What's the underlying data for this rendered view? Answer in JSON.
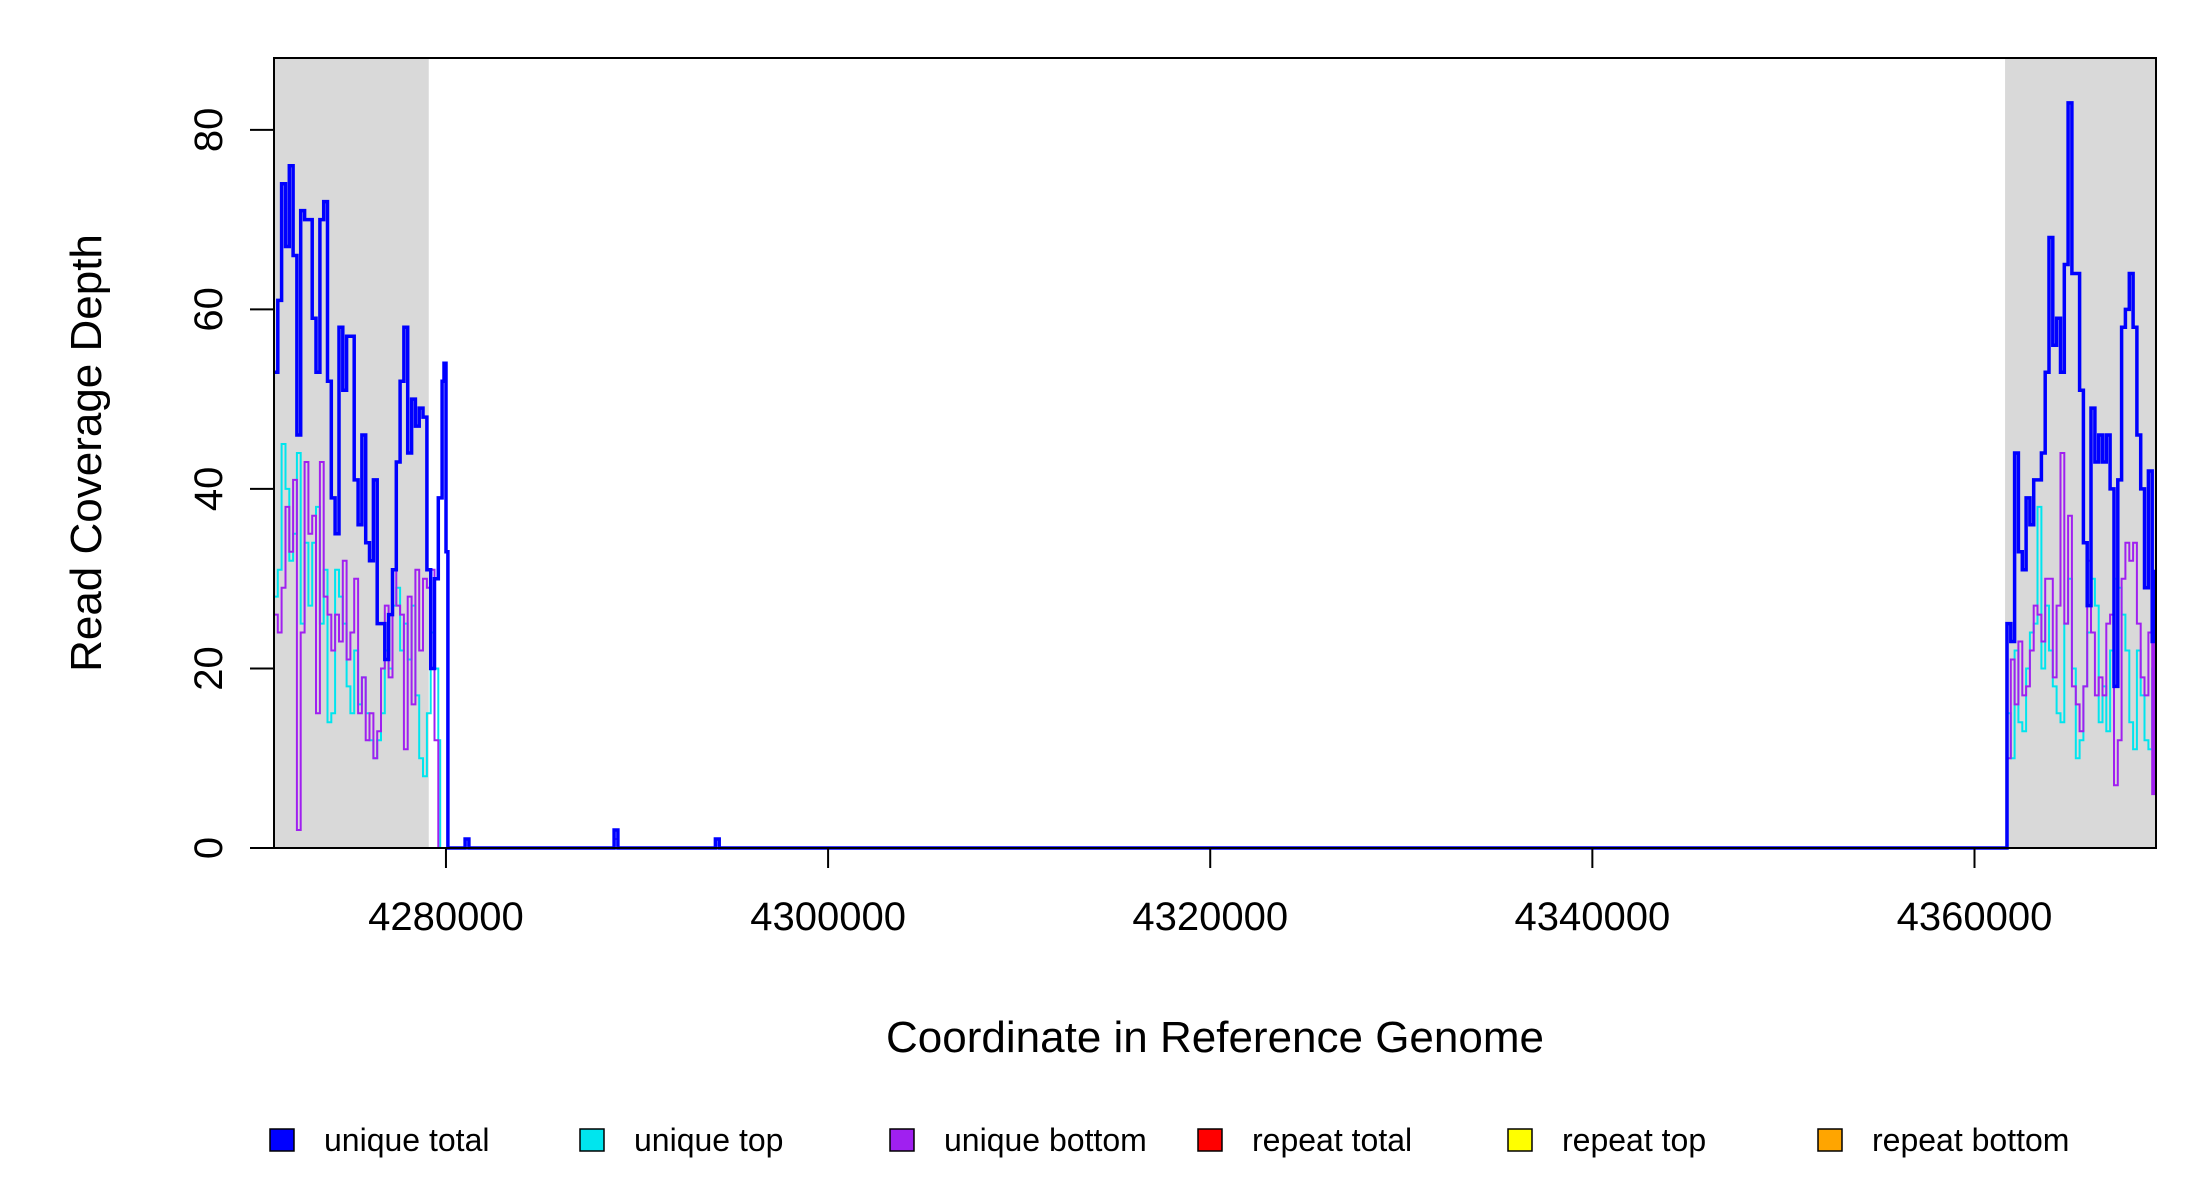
{
  "chart_data": {
    "type": "line",
    "xlabel": "Coordinate in Reference Genome",
    "ylabel": "Read Coverage Depth",
    "xlim": [
      4271000,
      4369500
    ],
    "ylim": [
      0,
      88
    ],
    "x_ticks": [
      4280000,
      4300000,
      4320000,
      4340000,
      4360000
    ],
    "x_tick_labels": [
      "4280000",
      "4300000",
      "4320000",
      "4340000",
      "4360000"
    ],
    "y_ticks": [
      0,
      20,
      40,
      60,
      80
    ],
    "y_tick_labels": [
      "0",
      "20",
      "40",
      "60",
      "80"
    ],
    "shaded_regions": [
      [
        4271000,
        4279100
      ],
      [
        4361600,
        4369500
      ]
    ],
    "grid": false,
    "legend_position": "bottom",
    "series": [
      {
        "name": "unique total",
        "color": "#0000ff",
        "points": [
          [
            4271000,
            53
          ],
          [
            4271200,
            61
          ],
          [
            4271400,
            74
          ],
          [
            4271600,
            67
          ],
          [
            4271800,
            76
          ],
          [
            4272000,
            66
          ],
          [
            4272200,
            46
          ],
          [
            4272400,
            71
          ],
          [
            4272600,
            70
          ],
          [
            4272800,
            70
          ],
          [
            4273000,
            59
          ],
          [
            4273200,
            53
          ],
          [
            4273400,
            70
          ],
          [
            4273600,
            72
          ],
          [
            4273800,
            52
          ],
          [
            4274000,
            39
          ],
          [
            4274200,
            35
          ],
          [
            4274400,
            58
          ],
          [
            4274600,
            51
          ],
          [
            4274800,
            57
          ],
          [
            4275000,
            57
          ],
          [
            4275200,
            41
          ],
          [
            4275400,
            36
          ],
          [
            4275600,
            46
          ],
          [
            4275800,
            34
          ],
          [
            4276000,
            32
          ],
          [
            4276200,
            41
          ],
          [
            4276400,
            25
          ],
          [
            4276600,
            25
          ],
          [
            4276800,
            21
          ],
          [
            4277000,
            26
          ],
          [
            4277200,
            31
          ],
          [
            4277400,
            43
          ],
          [
            4277600,
            52
          ],
          [
            4277800,
            58
          ],
          [
            4278000,
            44
          ],
          [
            4278200,
            50
          ],
          [
            4278400,
            47
          ],
          [
            4278600,
            49
          ],
          [
            4278800,
            48
          ],
          [
            4279000,
            31
          ],
          [
            4279200,
            20
          ],
          [
            4279400,
            30
          ],
          [
            4279600,
            39
          ],
          [
            4279800,
            52
          ],
          [
            4279900,
            54
          ],
          [
            4280000,
            33
          ],
          [
            4280100,
            0
          ],
          [
            4281000,
            1
          ],
          [
            4281200,
            0
          ],
          [
            4288800,
            2
          ],
          [
            4289000,
            0
          ],
          [
            4294100,
            1
          ],
          [
            4294300,
            0
          ],
          [
            4361600,
            0
          ],
          [
            4361700,
            25
          ],
          [
            4361900,
            23
          ],
          [
            4362100,
            44
          ],
          [
            4362300,
            33
          ],
          [
            4362500,
            31
          ],
          [
            4362700,
            39
          ],
          [
            4362900,
            36
          ],
          [
            4363100,
            41
          ],
          [
            4363300,
            41
          ],
          [
            4363500,
            44
          ],
          [
            4363700,
            53
          ],
          [
            4363900,
            68
          ],
          [
            4364100,
            56
          ],
          [
            4364300,
            59
          ],
          [
            4364500,
            53
          ],
          [
            4364700,
            65
          ],
          [
            4364900,
            83
          ],
          [
            4365100,
            64
          ],
          [
            4365300,
            64
          ],
          [
            4365500,
            51
          ],
          [
            4365700,
            34
          ],
          [
            4365900,
            27
          ],
          [
            4366100,
            49
          ],
          [
            4366300,
            43
          ],
          [
            4366500,
            46
          ],
          [
            4366700,
            43
          ],
          [
            4366900,
            46
          ],
          [
            4367100,
            40
          ],
          [
            4367300,
            18
          ],
          [
            4367500,
            41
          ],
          [
            4367700,
            58
          ],
          [
            4367900,
            60
          ],
          [
            4368100,
            64
          ],
          [
            4368300,
            58
          ],
          [
            4368500,
            46
          ],
          [
            4368700,
            40
          ],
          [
            4368900,
            29
          ],
          [
            4369100,
            42
          ],
          [
            4369300,
            23
          ],
          [
            4369400,
            31
          ]
        ]
      },
      {
        "name": "unique top",
        "color": "#00e5ee",
        "points": [
          [
            4271000,
            28
          ],
          [
            4271200,
            31
          ],
          [
            4271400,
            45
          ],
          [
            4271600,
            40
          ],
          [
            4271800,
            32
          ],
          [
            4272000,
            35
          ],
          [
            4272200,
            44
          ],
          [
            4272400,
            25
          ],
          [
            4272600,
            34
          ],
          [
            4272800,
            27
          ],
          [
            4273000,
            34
          ],
          [
            4273200,
            38
          ],
          [
            4273400,
            25
          ],
          [
            4273600,
            31
          ],
          [
            4273800,
            14
          ],
          [
            4274000,
            15
          ],
          [
            4274200,
            31
          ],
          [
            4274400,
            28
          ],
          [
            4274600,
            25
          ],
          [
            4274800,
            18
          ],
          [
            4275000,
            15
          ],
          [
            4275200,
            22
          ],
          [
            4275400,
            16
          ],
          [
            4275600,
            19
          ],
          [
            4275800,
            15
          ],
          [
            4276000,
            12
          ],
          [
            4276200,
            10
          ],
          [
            4276400,
            12
          ],
          [
            4276600,
            15
          ],
          [
            4276800,
            22
          ],
          [
            4277000,
            20
          ],
          [
            4277200,
            27
          ],
          [
            4277400,
            29
          ],
          [
            4277600,
            22
          ],
          [
            4277800,
            25
          ],
          [
            4278000,
            21
          ],
          [
            4278200,
            27
          ],
          [
            4278400,
            17
          ],
          [
            4278600,
            10
          ],
          [
            4278800,
            8
          ],
          [
            4279000,
            15
          ],
          [
            4279200,
            24
          ],
          [
            4279400,
            20
          ],
          [
            4279600,
            12
          ],
          [
            4279700,
            0
          ],
          [
            4281000,
            1
          ],
          [
            4281200,
            0
          ],
          [
            4294100,
            1
          ],
          [
            4294300,
            0
          ],
          [
            4361600,
            0
          ],
          [
            4361700,
            15
          ],
          [
            4361900,
            10
          ],
          [
            4362100,
            22
          ],
          [
            4362300,
            14
          ],
          [
            4362500,
            13
          ],
          [
            4362700,
            20
          ],
          [
            4362900,
            24
          ],
          [
            4363100,
            25
          ],
          [
            4363300,
            38
          ],
          [
            4363500,
            20
          ],
          [
            4363700,
            27
          ],
          [
            4363900,
            22
          ],
          [
            4364100,
            18
          ],
          [
            4364300,
            15
          ],
          [
            4364500,
            14
          ],
          [
            4364700,
            25
          ],
          [
            4364900,
            30
          ],
          [
            4365100,
            20
          ],
          [
            4365300,
            10
          ],
          [
            4365500,
            12
          ],
          [
            4365700,
            18
          ],
          [
            4365900,
            24
          ],
          [
            4366100,
            30
          ],
          [
            4366300,
            27
          ],
          [
            4366500,
            14
          ],
          [
            4366700,
            18
          ],
          [
            4366900,
            13
          ],
          [
            4367100,
            22
          ],
          [
            4367300,
            30
          ],
          [
            4367500,
            29
          ],
          [
            4367700,
            26
          ],
          [
            4367900,
            22
          ],
          [
            4368100,
            14
          ],
          [
            4368300,
            11
          ],
          [
            4368500,
            22
          ],
          [
            4368700,
            17
          ],
          [
            4368900,
            12
          ],
          [
            4369100,
            11
          ],
          [
            4369300,
            20
          ],
          [
            4369400,
            12
          ]
        ]
      },
      {
        "name": "unique bottom",
        "color": "#a020f0",
        "points": [
          [
            4271000,
            26
          ],
          [
            4271200,
            24
          ],
          [
            4271400,
            29
          ],
          [
            4271600,
            38
          ],
          [
            4271800,
            33
          ],
          [
            4272000,
            41
          ],
          [
            4272200,
            2
          ],
          [
            4272400,
            24
          ],
          [
            4272600,
            43
          ],
          [
            4272800,
            35
          ],
          [
            4273000,
            37
          ],
          [
            4273200,
            15
          ],
          [
            4273400,
            43
          ],
          [
            4273600,
            28
          ],
          [
            4273800,
            26
          ],
          [
            4274000,
            22
          ],
          [
            4274200,
            26
          ],
          [
            4274400,
            23
          ],
          [
            4274600,
            32
          ],
          [
            4274800,
            21
          ],
          [
            4275000,
            24
          ],
          [
            4275200,
            30
          ],
          [
            4275400,
            15
          ],
          [
            4275600,
            19
          ],
          [
            4275800,
            12
          ],
          [
            4276000,
            15
          ],
          [
            4276200,
            10
          ],
          [
            4276400,
            13
          ],
          [
            4276600,
            20
          ],
          [
            4276800,
            27
          ],
          [
            4277000,
            19
          ],
          [
            4277200,
            31
          ],
          [
            4277400,
            27
          ],
          [
            4277600,
            26
          ],
          [
            4277800,
            11
          ],
          [
            4278000,
            28
          ],
          [
            4278200,
            16
          ],
          [
            4278400,
            31
          ],
          [
            4278600,
            22
          ],
          [
            4278800,
            30
          ],
          [
            4279000,
            29
          ],
          [
            4279200,
            31
          ],
          [
            4279400,
            12
          ],
          [
            4279600,
            0
          ],
          [
            4281000,
            1
          ],
          [
            4281200,
            0
          ],
          [
            4288800,
            1
          ],
          [
            4289000,
            0
          ],
          [
            4294100,
            1
          ],
          [
            4294300,
            0
          ],
          [
            4361600,
            0
          ],
          [
            4361700,
            10
          ],
          [
            4361900,
            21
          ],
          [
            4362100,
            16
          ],
          [
            4362300,
            23
          ],
          [
            4362500,
            17
          ],
          [
            4362700,
            18
          ],
          [
            4362900,
            22
          ],
          [
            4363100,
            27
          ],
          [
            4363300,
            26
          ],
          [
            4363500,
            23
          ],
          [
            4363700,
            30
          ],
          [
            4363900,
            30
          ],
          [
            4364100,
            19
          ],
          [
            4364300,
            27
          ],
          [
            4364500,
            44
          ],
          [
            4364700,
            25
          ],
          [
            4364900,
            37
          ],
          [
            4365100,
            18
          ],
          [
            4365300,
            16
          ],
          [
            4365500,
            13
          ],
          [
            4365700,
            18
          ],
          [
            4365900,
            32
          ],
          [
            4366100,
            24
          ],
          [
            4366300,
            17
          ],
          [
            4366500,
            19
          ],
          [
            4366700,
            17
          ],
          [
            4366900,
            25
          ],
          [
            4367100,
            26
          ],
          [
            4367300,
            7
          ],
          [
            4367500,
            12
          ],
          [
            4367700,
            30
          ],
          [
            4367900,
            34
          ],
          [
            4368100,
            32
          ],
          [
            4368300,
            34
          ],
          [
            4368500,
            25
          ],
          [
            4368700,
            19
          ],
          [
            4368900,
            17
          ],
          [
            4369100,
            24
          ],
          [
            4369300,
            6
          ],
          [
            4369400,
            25
          ]
        ]
      },
      {
        "name": "repeat total",
        "color": "#ff0000",
        "points": [
          [
            4271000,
            0
          ],
          [
            4369500,
            0
          ]
        ]
      },
      {
        "name": "repeat top",
        "color": "#ffff00",
        "points": [
          [
            4271000,
            0
          ],
          [
            4369500,
            0
          ]
        ]
      },
      {
        "name": "repeat bottom",
        "color": "#ffa500",
        "points": [
          [
            4271000,
            0
          ],
          [
            4369500,
            0
          ]
        ]
      }
    ]
  }
}
